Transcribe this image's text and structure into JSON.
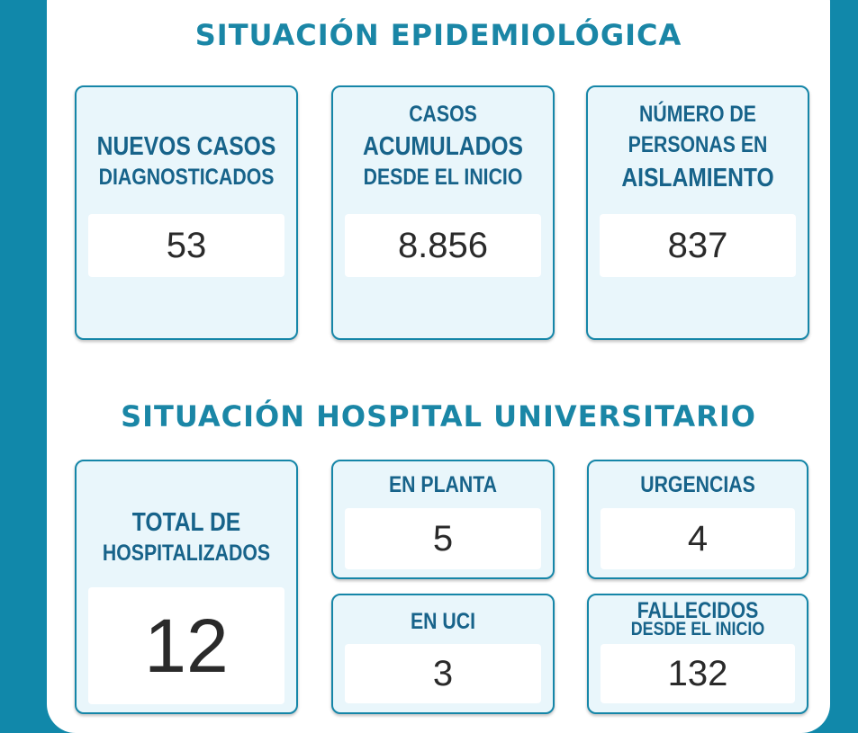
{
  "section1": {
    "title": "SITUACIÓN EPIDEMIOLÓGICA",
    "cards": [
      {
        "lines": [
          "NUEVOS CASOS",
          "DIAGNOSTICADOS"
        ],
        "value": "53"
      },
      {
        "lines": [
          "CASOS",
          "ACUMULADOS",
          "DESDE EL INICIO"
        ],
        "value": "8.856"
      },
      {
        "lines": [
          "NÚMERO DE",
          "PERSONAS EN",
          "AISLAMIENTO"
        ],
        "value": "837"
      }
    ]
  },
  "section2": {
    "title": "SITUACIÓN HOSPITAL UNIVERSITARIO",
    "total": {
      "lines": [
        "TOTAL DE",
        "HOSPITALIZADOS"
      ],
      "value": "12"
    },
    "planta": {
      "label": "EN PLANTA",
      "value": "5"
    },
    "urgencias": {
      "label": "URGENCIAS",
      "value": "4"
    },
    "uci": {
      "label": "EN UCI",
      "value": "3"
    },
    "fallecidos": {
      "lines": [
        "FALLECIDOS",
        "DESDE EL INICIO"
      ],
      "value": "132"
    }
  },
  "colors": {
    "background": "#1188aa",
    "title": "#1a86a6",
    "label": "#17638a",
    "card_bg": "#e9f6fb",
    "card_border": "#1586a8"
  }
}
